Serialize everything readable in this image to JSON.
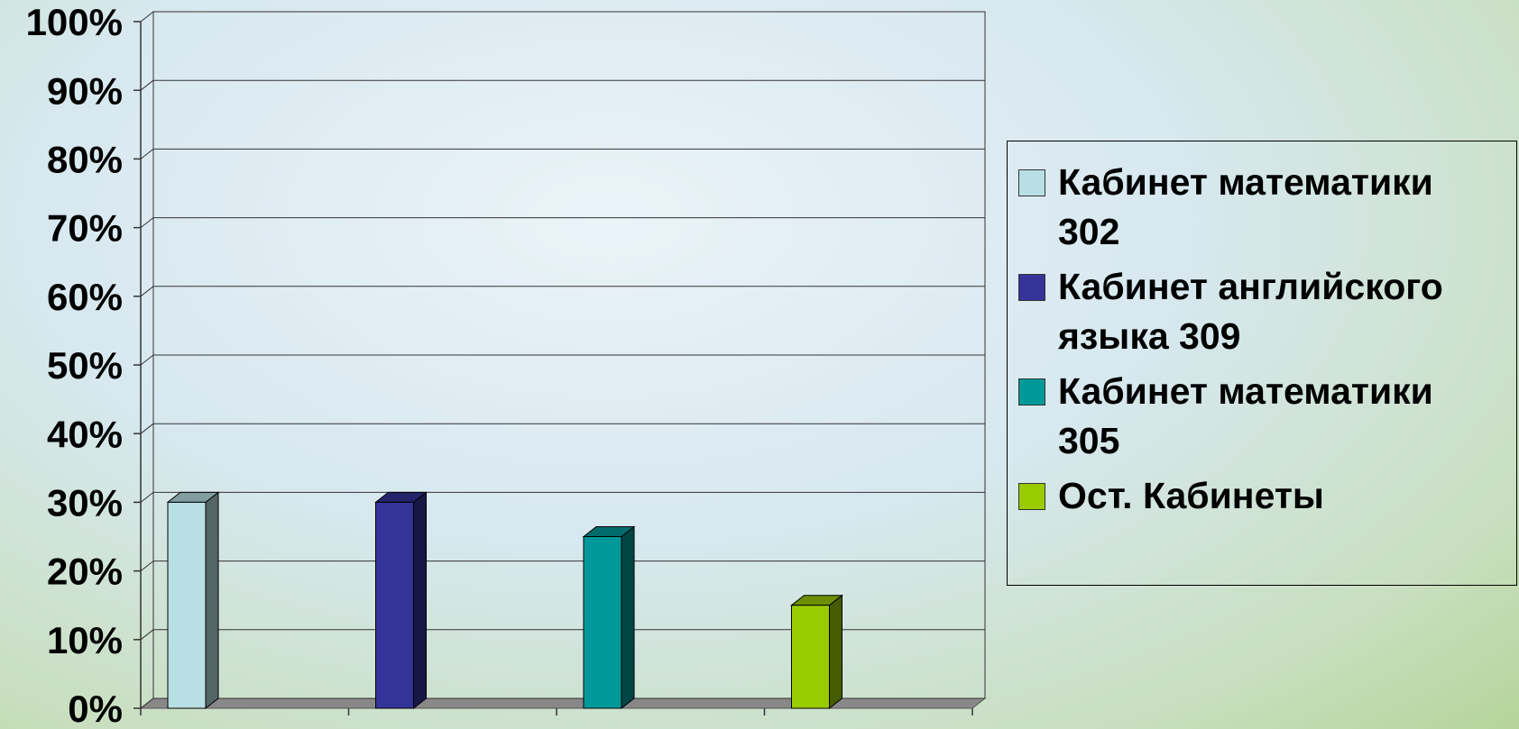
{
  "chart_data": {
    "type": "bar3d",
    "series": [
      {
        "name": "Кабинет математики 302",
        "color": "#b8e0e4",
        "values": [
          30
        ]
      },
      {
        "name": "Кабинет английского языка 309",
        "color": "#333399",
        "values": [
          30
        ]
      },
      {
        "name": "Кабинет математики 305",
        "color": "#009999",
        "values": [
          25
        ]
      },
      {
        "name": "Ост. Кабинеты",
        "color": "#99cc00",
        "values": [
          15
        ]
      }
    ],
    "ylim": [
      0,
      100
    ],
    "yticks": [
      {
        "value": 0,
        "label": "0%"
      },
      {
        "value": 10,
        "label": "10%"
      },
      {
        "value": 20,
        "label": "20%"
      },
      {
        "value": 30,
        "label": "30%"
      },
      {
        "value": 40,
        "label": "40%"
      },
      {
        "value": 50,
        "label": "50%"
      },
      {
        "value": 60,
        "label": "60%"
      },
      {
        "value": 70,
        "label": "70%"
      },
      {
        "value": 80,
        "label": "80%"
      },
      {
        "value": 90,
        "label": "90%"
      },
      {
        "value": 100,
        "label": "100%"
      }
    ],
    "grid": true,
    "legend": "right"
  }
}
